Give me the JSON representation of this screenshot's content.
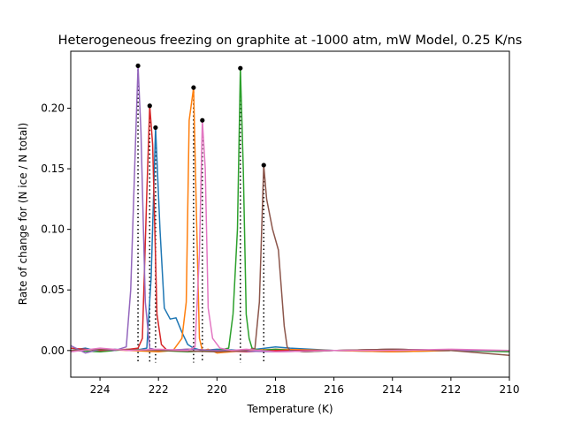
{
  "chart_data": {
    "type": "line",
    "title": "Heterogeneous freezing on graphite at -1000 atm, mW Model, 0.25 K/ns",
    "xlabel": "Temperature (K)",
    "ylabel": "Rate of change for (N ice / N total)",
    "xlim": [
      225,
      210
    ],
    "ylim": [
      -0.022,
      0.247
    ],
    "x_inverted": true,
    "x_ticks": [
      224,
      222,
      220,
      218,
      216,
      214,
      212,
      210
    ],
    "x_tick_labels": [
      "224",
      "222",
      "220",
      "218",
      "216",
      "214",
      "212",
      "210"
    ],
    "y_ticks": [
      0.0,
      0.05,
      0.1,
      0.15,
      0.2
    ],
    "y_tick_labels": [
      "0.00",
      "0.05",
      "0.10",
      "0.15",
      "0.20"
    ],
    "grid": false,
    "legend": false,
    "series": [
      {
        "color": "#1f77b4",
        "peak": {
          "x": 222.1,
          "y": 0.184
        },
        "x": [
          225.0,
          224.5,
          224.0,
          223.5,
          223.0,
          222.6,
          222.4,
          222.25,
          222.1,
          221.95,
          221.8,
          221.6,
          221.4,
          221.2,
          221.0,
          220.8,
          220.5,
          220.0,
          219.0,
          218.0,
          217.5,
          216.0,
          214.0,
          212.0,
          210.0
        ],
        "y": [
          0.0,
          0.002,
          -0.001,
          0.001,
          0.0,
          0.001,
          0.002,
          0.06,
          0.184,
          0.1,
          0.035,
          0.026,
          0.027,
          0.015,
          0.005,
          0.002,
          0.0,
          0.001,
          0.0,
          0.003,
          0.002,
          0.0,
          -0.001,
          0.0,
          0.0
        ]
      },
      {
        "color": "#ff7f0e",
        "peak": {
          "x": 220.8,
          "y": 0.217
        },
        "x": [
          225.0,
          224.0,
          223.0,
          222.0,
          221.5,
          221.2,
          221.05,
          220.95,
          220.8,
          220.7,
          220.6,
          220.5,
          220.3,
          220.0,
          219.0,
          218.0,
          216.0,
          214.0,
          212.0,
          210.0
        ],
        "y": [
          0.0,
          0.001,
          0.0,
          -0.001,
          0.0,
          0.01,
          0.04,
          0.19,
          0.217,
          0.11,
          0.01,
          0.0,
          0.001,
          -0.002,
          0.0,
          0.001,
          0.0,
          -0.001,
          0.0,
          0.0
        ]
      },
      {
        "color": "#2ca02c",
        "peak": {
          "x": 219.2,
          "y": 0.233
        },
        "x": [
          225.0,
          224.0,
          223.0,
          222.0,
          221.0,
          220.0,
          219.6,
          219.45,
          219.3,
          219.2,
          219.1,
          219.0,
          218.9,
          218.8,
          218.5,
          218.0,
          217.0,
          216.0,
          214.0,
          212.0,
          210.0
        ],
        "y": [
          0.0,
          -0.001,
          0.001,
          0.0,
          -0.001,
          0.0,
          0.002,
          0.03,
          0.1,
          0.233,
          0.15,
          0.03,
          0.01,
          0.002,
          0.0,
          0.001,
          -0.001,
          0.0,
          0.001,
          0.0,
          -0.001
        ]
      },
      {
        "color": "#d62728",
        "peak": {
          "x": 222.3,
          "y": 0.202
        },
        "x": [
          225.0,
          224.0,
          223.0,
          222.7,
          222.55,
          222.4,
          222.3,
          222.2,
          222.05,
          221.9,
          221.7,
          221.0,
          220.0,
          219.0,
          218.0,
          216.0,
          214.0,
          212.0,
          210.0
        ],
        "y": [
          0.002,
          0.0,
          0.001,
          0.002,
          0.01,
          0.13,
          0.202,
          0.17,
          0.03,
          0.005,
          0.0,
          0.001,
          0.0,
          -0.001,
          0.0,
          0.0,
          0.001,
          0.0,
          0.0
        ]
      },
      {
        "color": "#9467bd",
        "peak": {
          "x": 222.7,
          "y": 0.235
        },
        "x": [
          225.0,
          224.5,
          224.0,
          223.5,
          223.1,
          222.95,
          222.8,
          222.7,
          222.6,
          222.45,
          222.3,
          222.0,
          221.0,
          220.0,
          218.0,
          216.0,
          214.0,
          212.0,
          210.0
        ],
        "y": [
          0.004,
          -0.002,
          0.001,
          0.0,
          0.003,
          0.05,
          0.16,
          0.235,
          0.18,
          0.04,
          0.002,
          0.0,
          0.001,
          0.0,
          -0.001,
          0.0,
          0.001,
          0.0,
          0.0
        ]
      },
      {
        "color": "#8c564b",
        "peak": {
          "x": 218.4,
          "y": 0.153
        },
        "x": [
          225.0,
          224.0,
          222.0,
          220.0,
          219.0,
          218.7,
          218.55,
          218.4,
          218.3,
          218.1,
          217.9,
          217.7,
          217.6,
          217.5,
          217.0,
          216.0,
          214.0,
          212.0,
          210.0
        ],
        "y": [
          0.0,
          0.001,
          0.0,
          -0.001,
          0.0,
          0.002,
          0.04,
          0.153,
          0.125,
          0.1,
          0.083,
          0.02,
          0.003,
          0.0,
          -0.001,
          0.0,
          0.001,
          0.0,
          -0.004
        ]
      },
      {
        "color": "#e377c2",
        "peak": {
          "x": 220.5,
          "y": 0.19
        },
        "x": [
          225.0,
          224.0,
          223.0,
          222.0,
          221.0,
          220.75,
          220.6,
          220.5,
          220.4,
          220.3,
          220.15,
          219.9,
          219.5,
          219.0,
          218.0,
          216.0,
          214.0,
          212.0,
          210.0
        ],
        "y": [
          -0.001,
          0.002,
          0.0,
          0.001,
          0.0,
          0.003,
          0.08,
          0.19,
          0.15,
          0.035,
          0.01,
          0.002,
          0.0,
          0.001,
          -0.001,
          0.0,
          0.0,
          0.001,
          0.0
        ]
      }
    ]
  }
}
